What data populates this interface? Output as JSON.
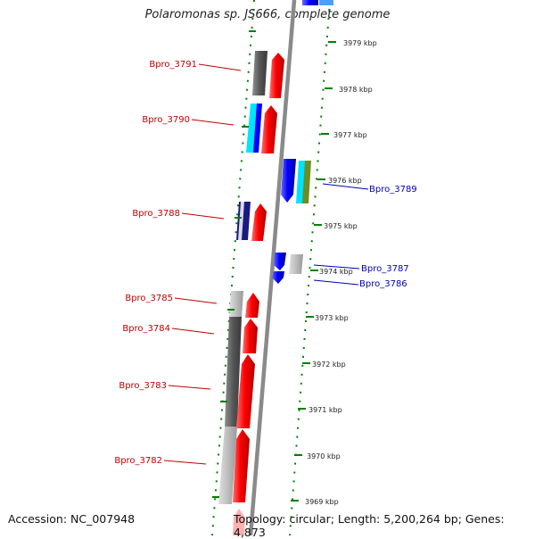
{
  "title": "Polaromonas sp. JS666, complete genome",
  "footer": {
    "accession": "Accession: NC_007948",
    "topology": "Topology: circular; Length: 5,200,264 bp; Genes: 4,873"
  },
  "ticks": [
    "3979 kbp",
    "3978 kbp",
    "3977 kbp",
    "3976 kbp",
    "3975 kbp",
    "3974 kbp",
    "3973 kbp",
    "3972 kbp",
    "3971 kbp",
    "3970 kbp",
    "3969 kbp"
  ],
  "labels": {
    "bpro_3791": "Bpro_3791",
    "bpro_3790": "Bpro_3790",
    "bpro_3789": "Bpro_3789",
    "bpro_3788": "Bpro_3788",
    "bpro_3787": "Bpro_3787",
    "bpro_3786": "Bpro_3786",
    "bpro_3785": "Bpro_3785",
    "bpro_3784": "Bpro_3784",
    "bpro_3783": "Bpro_3783",
    "bpro_3782": "Bpro_3782"
  },
  "colors": {
    "forward_strand": "#ff0000",
    "reverse_strand": "#0000ff",
    "ticks": "#008000",
    "backbone": "#888888"
  }
}
